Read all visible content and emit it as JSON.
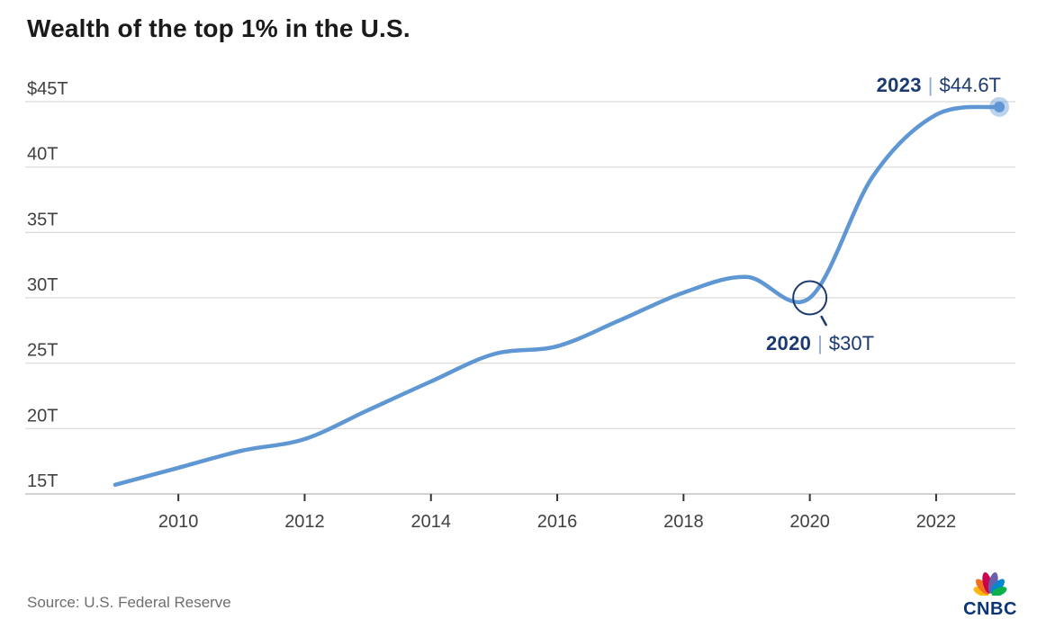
{
  "header": {
    "title": "Wealth of the top 1% in the U.S."
  },
  "chart_data": {
    "type": "line",
    "title": "Wealth of the top 1% in the U.S.",
    "series_name": "Wealth of the top 1%",
    "unit": "trillions of U.S. dollars",
    "x": [
      2009,
      2010,
      2011,
      2012,
      2013,
      2014,
      2015,
      2016,
      2017,
      2018,
      2019,
      2020,
      2021,
      2022,
      2023
    ],
    "values": [
      15.7,
      17.0,
      18.3,
      19.2,
      21.4,
      23.6,
      25.7,
      26.3,
      28.3,
      30.4,
      31.6,
      30.0,
      39.3,
      44.0,
      44.6
    ],
    "ylim": [
      15,
      45
    ],
    "yticks": {
      "values": [
        45,
        40,
        35,
        30,
        25,
        20,
        15
      ],
      "labels": [
        "$45T",
        "40T",
        "35T",
        "30T",
        "25T",
        "20T",
        "15T"
      ]
    },
    "xticks": {
      "values": [
        2010,
        2012,
        2014,
        2016,
        2018,
        2020,
        2022
      ],
      "labels": [
        "2010",
        "2012",
        "2014",
        "2016",
        "2018",
        "2020",
        "2022"
      ]
    },
    "grid": "horizontal",
    "legend": "none",
    "separator": "|",
    "annotations": [
      {
        "type": "endpoint-dot",
        "year": "2023",
        "value_label": "$44.6T",
        "x": 2023,
        "y": 44.6
      },
      {
        "type": "circle-callout",
        "year": "2020",
        "value_label": "$30T",
        "x": 2020,
        "y": 30
      }
    ]
  },
  "footer": {
    "source": "Source: U.S. Federal Reserve",
    "logo": {
      "wordmark": "CNBC",
      "wordmark_color": "#0b3576",
      "feather_colors": [
        "#FCB711",
        "#F37021",
        "#CC004C",
        "#6460AA",
        "#0089D0",
        "#0DB14B"
      ]
    }
  },
  "colors": {
    "background": "#ffffff",
    "title": "#1a1a1a",
    "label": "#414141",
    "grid": "#d9d9d9",
    "axis": "#c4c4c4",
    "tick": "#333333",
    "line": "#5e97d3",
    "annotation_navy": "#1b3a70",
    "separator": "#8fa9cc",
    "source": "#6e6e6e"
  }
}
